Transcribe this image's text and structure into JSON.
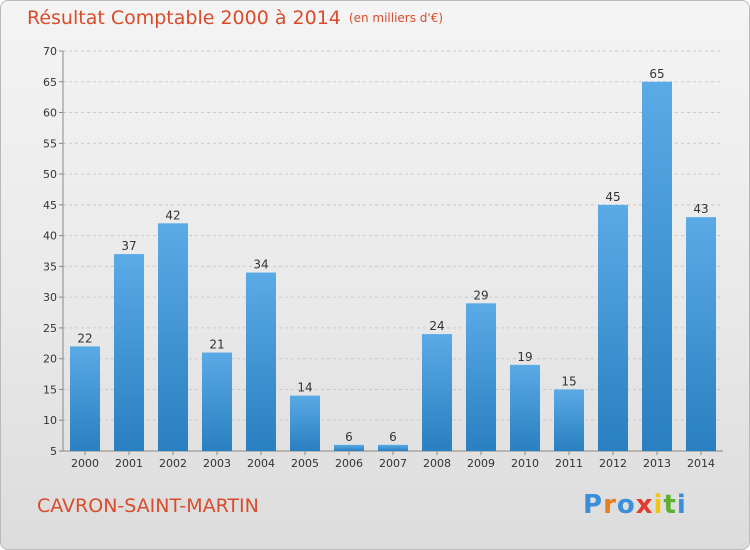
{
  "chart_data": {
    "type": "bar",
    "title": "Résultat Comptable 2000 à 2014",
    "subtitle": "(en milliers d'€)",
    "categories": [
      "2000",
      "2001",
      "2002",
      "2003",
      "2004",
      "2005",
      "2006",
      "2007",
      "2008",
      "2009",
      "2010",
      "2011",
      "2012",
      "2013",
      "2014"
    ],
    "values": [
      22,
      37,
      42,
      21,
      34,
      14,
      6,
      6,
      24,
      29,
      19,
      15,
      45,
      65,
      43
    ],
    "ylim": [
      5,
      70
    ],
    "yticks": [
      5,
      10,
      15,
      20,
      25,
      30,
      35,
      40,
      45,
      50,
      55,
      60,
      65,
      70
    ],
    "grid": true,
    "bar_color_top": "#5aaae6",
    "bar_color_bottom": "#2a7fc0"
  },
  "footer": {
    "place": "CAVRON-SAINT-MARTIN",
    "logo_letters": [
      "P",
      "r",
      "o",
      "x",
      "i",
      "t",
      "i"
    ],
    "logo_colors": [
      "#3a8fd8",
      "#e67e22",
      "#3a8fd8",
      "#e23b2e",
      "#f1c40f",
      "#5bb030",
      "#3a8fd8"
    ]
  }
}
